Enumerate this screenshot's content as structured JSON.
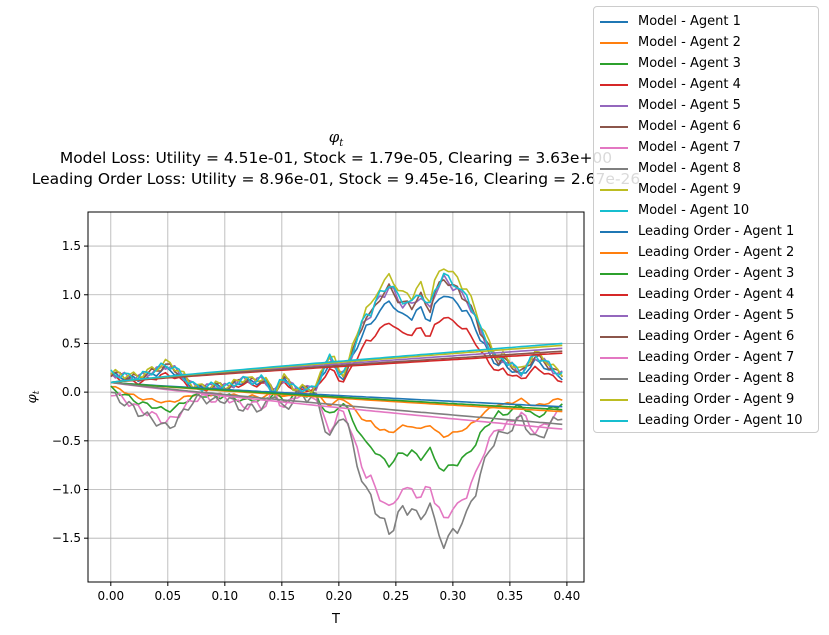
{
  "chart_data": {
    "type": "line",
    "title_lines": [
      "Model Loss: Utility = 4.51e-01, Stock = 1.79e-05, Clearing = 3.63e+00",
      "Leading Order Loss: Utility = 8.96e-01, Stock = 9.45e-16, Clearing = 2.67e-26"
    ],
    "title_symbol": "φ",
    "title_subscript": "t",
    "xlabel": "T",
    "ylabel_symbol": "φ",
    "ylabel_subscript": "t",
    "xlim": [
      -0.02,
      0.415
    ],
    "ylim": [
      -1.95,
      1.85
    ],
    "xticks": [
      0.0,
      0.05,
      0.1,
      0.15,
      0.2,
      0.25,
      0.3,
      0.35,
      0.4
    ],
    "xtick_labels": [
      "0.00",
      "0.05",
      "0.10",
      "0.15",
      "0.20",
      "0.25",
      "0.30",
      "0.35",
      "0.40"
    ],
    "yticks": [
      -1.5,
      -1.0,
      -0.5,
      0.0,
      0.5,
      1.0,
      1.5
    ],
    "ytick_labels": [
      "−1.5",
      "−1.0",
      "−0.5",
      "0.0",
      "0.5",
      "1.0",
      "1.5"
    ],
    "grid": true,
    "legend_position": "outside-right",
    "x_start": 0.0,
    "x_step": 0.004,
    "base_shape": [
      0.1,
      0.11,
      0.12,
      0.13,
      0.14,
      0.15,
      0.17,
      0.19,
      0.21,
      0.23,
      0.25,
      0.28,
      0.3,
      0.29,
      0.26,
      0.22,
      0.17,
      0.12,
      0.08,
      0.06,
      0.05,
      0.06,
      0.07,
      0.08,
      0.07,
      0.06,
      0.07,
      0.09,
      0.12,
      0.14,
      0.14,
      0.12,
      0.13,
      0.15,
      0.12,
      0.05,
      0.0,
      0.1,
      0.15,
      0.12,
      0.06,
      0.02,
      0.04,
      0.05,
      0.03,
      0.05,
      0.18,
      0.3,
      0.38,
      0.33,
      0.22,
      0.2,
      0.3,
      0.45,
      0.6,
      0.75,
      0.85,
      0.88,
      1.0,
      1.08,
      1.12,
      1.2,
      1.15,
      1.05,
      1.0,
      1.02,
      0.98,
      1.05,
      1.1,
      1.0,
      0.95,
      1.12,
      1.22,
      1.3,
      1.25,
      1.2,
      1.18,
      1.1,
      1.05,
      0.95,
      0.85,
      0.7,
      0.6,
      0.5,
      0.42,
      0.35,
      0.38,
      0.33,
      0.3,
      0.25,
      0.22,
      0.28,
      0.35,
      0.4,
      0.38,
      0.35,
      0.3,
      0.25,
      0.22,
      0.2
    ],
    "model_scales": [
      0.78,
      -0.35,
      -0.62,
      0.6,
      0.9,
      0.9,
      -1.0,
      -1.2,
      1.0,
      0.93
    ],
    "leading_end": [
      -0.15,
      -0.2,
      -0.18,
      0.4,
      0.45,
      0.42,
      -0.38,
      -0.33,
      0.48,
      0.5
    ],
    "colors": [
      "#1f77b4",
      "#ff7f0e",
      "#2ca02c",
      "#d62728",
      "#9467bd",
      "#8c564b",
      "#e377c2",
      "#7f7f7f",
      "#bcbd22",
      "#17becf"
    ],
    "series": [
      {
        "name": "Model - Agent 1"
      },
      {
        "name": "Model - Agent 2"
      },
      {
        "name": "Model - Agent 3"
      },
      {
        "name": "Model - Agent 4"
      },
      {
        "name": "Model - Agent 5"
      },
      {
        "name": "Model - Agent 6"
      },
      {
        "name": "Model - Agent 7"
      },
      {
        "name": "Model - Agent 8"
      },
      {
        "name": "Model - Agent 9"
      },
      {
        "name": "Model - Agent 10"
      },
      {
        "name": "Leading Order - Agent 1"
      },
      {
        "name": "Leading Order - Agent 2"
      },
      {
        "name": "Leading Order - Agent 3"
      },
      {
        "name": "Leading Order - Agent 4"
      },
      {
        "name": "Leading Order - Agent 5"
      },
      {
        "name": "Leading Order - Agent 6"
      },
      {
        "name": "Leading Order - Agent 7"
      },
      {
        "name": "Leading Order - Agent 8"
      },
      {
        "name": "Leading Order - Agent 9"
      },
      {
        "name": "Leading Order - Agent 10"
      }
    ]
  }
}
